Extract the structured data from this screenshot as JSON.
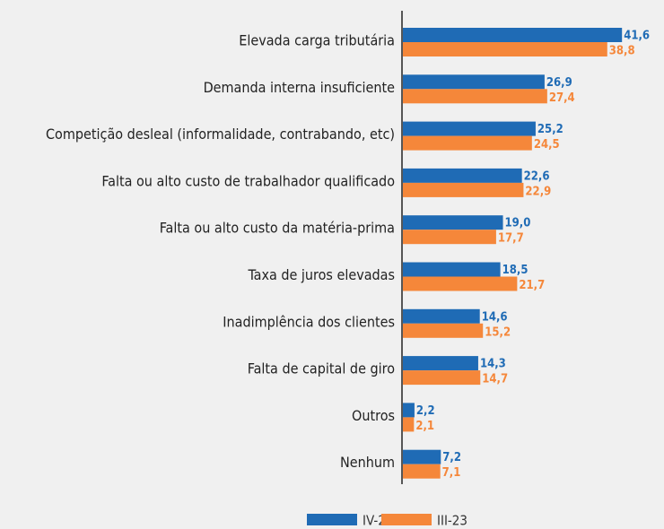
{
  "chart_data": {
    "type": "bar",
    "orientation": "horizontal",
    "categories": [
      "Elevada carga tributária",
      "Demanda interna insuficiente",
      "Competição desleal (informalidade, contrabando, etc)",
      "Falta ou alto custo de trabalhador qualificado",
      "Falta ou alto custo da matéria-prima",
      "Taxa de juros elevadas",
      "Inadimplência dos clientes",
      "Falta de capital de giro",
      "Outros",
      "Nenhum"
    ],
    "series": [
      {
        "name": "IV-23",
        "color": "#1f6bb5",
        "values": [
          41.6,
          26.9,
          25.2,
          22.6,
          19.0,
          18.5,
          14.6,
          14.3,
          2.2,
          7.2
        ],
        "value_labels": [
          "41,6",
          "26,9",
          "25,2",
          "22,6",
          "19,0",
          "18,5",
          "14,6",
          "14,3",
          "2,2",
          "7,2"
        ]
      },
      {
        "name": "III-23",
        "color": "#f5873a",
        "values": [
          38.8,
          27.4,
          24.5,
          22.9,
          17.7,
          21.7,
          15.2,
          14.7,
          2.1,
          7.1
        ],
        "value_labels": [
          "38,8",
          "27,4",
          "24,5",
          "22,9",
          "17,7",
          "21,7",
          "15,2",
          "14,7",
          "2,1",
          "7,1"
        ]
      }
    ]
  }
}
